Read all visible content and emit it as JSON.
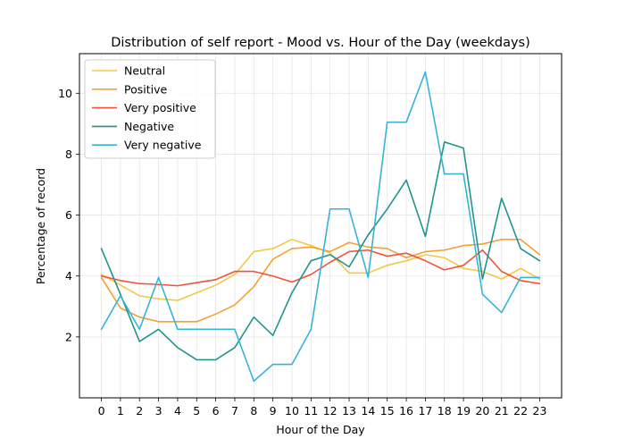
{
  "chart_data": {
    "type": "line",
    "title": "Distribution of self report - Mood vs. Hour of the Day (weekdays)",
    "xlabel": "Hour of the Day",
    "ylabel": "Percentage of record",
    "x": [
      0,
      1,
      2,
      3,
      4,
      5,
      6,
      7,
      8,
      9,
      10,
      11,
      12,
      13,
      14,
      15,
      16,
      17,
      18,
      19,
      20,
      21,
      22,
      23
    ],
    "xticks": [
      "0",
      "1",
      "2",
      "3",
      "4",
      "5",
      "6",
      "7",
      "8",
      "9",
      "10",
      "11",
      "12",
      "13",
      "14",
      "15",
      "16",
      "17",
      "18",
      "19",
      "20",
      "21",
      "22",
      "23"
    ],
    "yticks": [
      2,
      4,
      6,
      8,
      10
    ],
    "xlim": [
      -1.15,
      24.15
    ],
    "ylim": [
      0,
      11.3
    ],
    "grid": true,
    "legend_position": "top-left",
    "series": [
      {
        "name": "Neutral",
        "color": "#f5c842",
        "values": [
          4.05,
          3.7,
          3.35,
          3.25,
          3.2,
          3.45,
          3.7,
          4.05,
          4.8,
          4.9,
          5.2,
          5.0,
          4.75,
          4.1,
          4.1,
          4.35,
          4.5,
          4.7,
          4.6,
          4.25,
          4.15,
          3.9,
          4.25,
          3.9
        ]
      },
      {
        "name": "Positive",
        "color": "#f5a032",
        "values": [
          3.95,
          2.95,
          2.65,
          2.5,
          2.5,
          2.5,
          2.75,
          3.05,
          3.65,
          4.55,
          4.9,
          4.95,
          4.8,
          5.1,
          4.95,
          4.9,
          4.6,
          4.8,
          4.85,
          5.0,
          5.05,
          5.2,
          5.2,
          4.7
        ]
      },
      {
        "name": "Very positive",
        "color": "#f0523a",
        "values": [
          4.0,
          3.85,
          3.75,
          3.72,
          3.68,
          3.78,
          3.88,
          4.15,
          4.15,
          4.0,
          3.8,
          4.05,
          4.45,
          4.8,
          4.85,
          4.65,
          4.75,
          4.5,
          4.2,
          4.35,
          4.85,
          4.15,
          3.85,
          3.75
        ]
      },
      {
        "name": "Negative",
        "color": "#21958c",
        "values": [
          4.9,
          3.4,
          1.85,
          2.25,
          1.65,
          1.25,
          1.25,
          1.65,
          2.65,
          2.05,
          3.45,
          4.5,
          4.7,
          4.3,
          5.35,
          6.2,
          7.15,
          5.3,
          8.4,
          8.2,
          3.9,
          6.55,
          4.9,
          4.5
        ]
      },
      {
        "name": "Very negative",
        "color": "#35b4d8",
        "values": [
          2.25,
          3.35,
          2.25,
          3.95,
          2.25,
          2.25,
          2.25,
          2.25,
          0.55,
          1.1,
          1.1,
          2.25,
          6.2,
          6.2,
          3.95,
          9.05,
          9.05,
          10.7,
          7.35,
          7.35,
          3.4,
          2.8,
          3.95,
          3.95
        ]
      }
    ]
  }
}
